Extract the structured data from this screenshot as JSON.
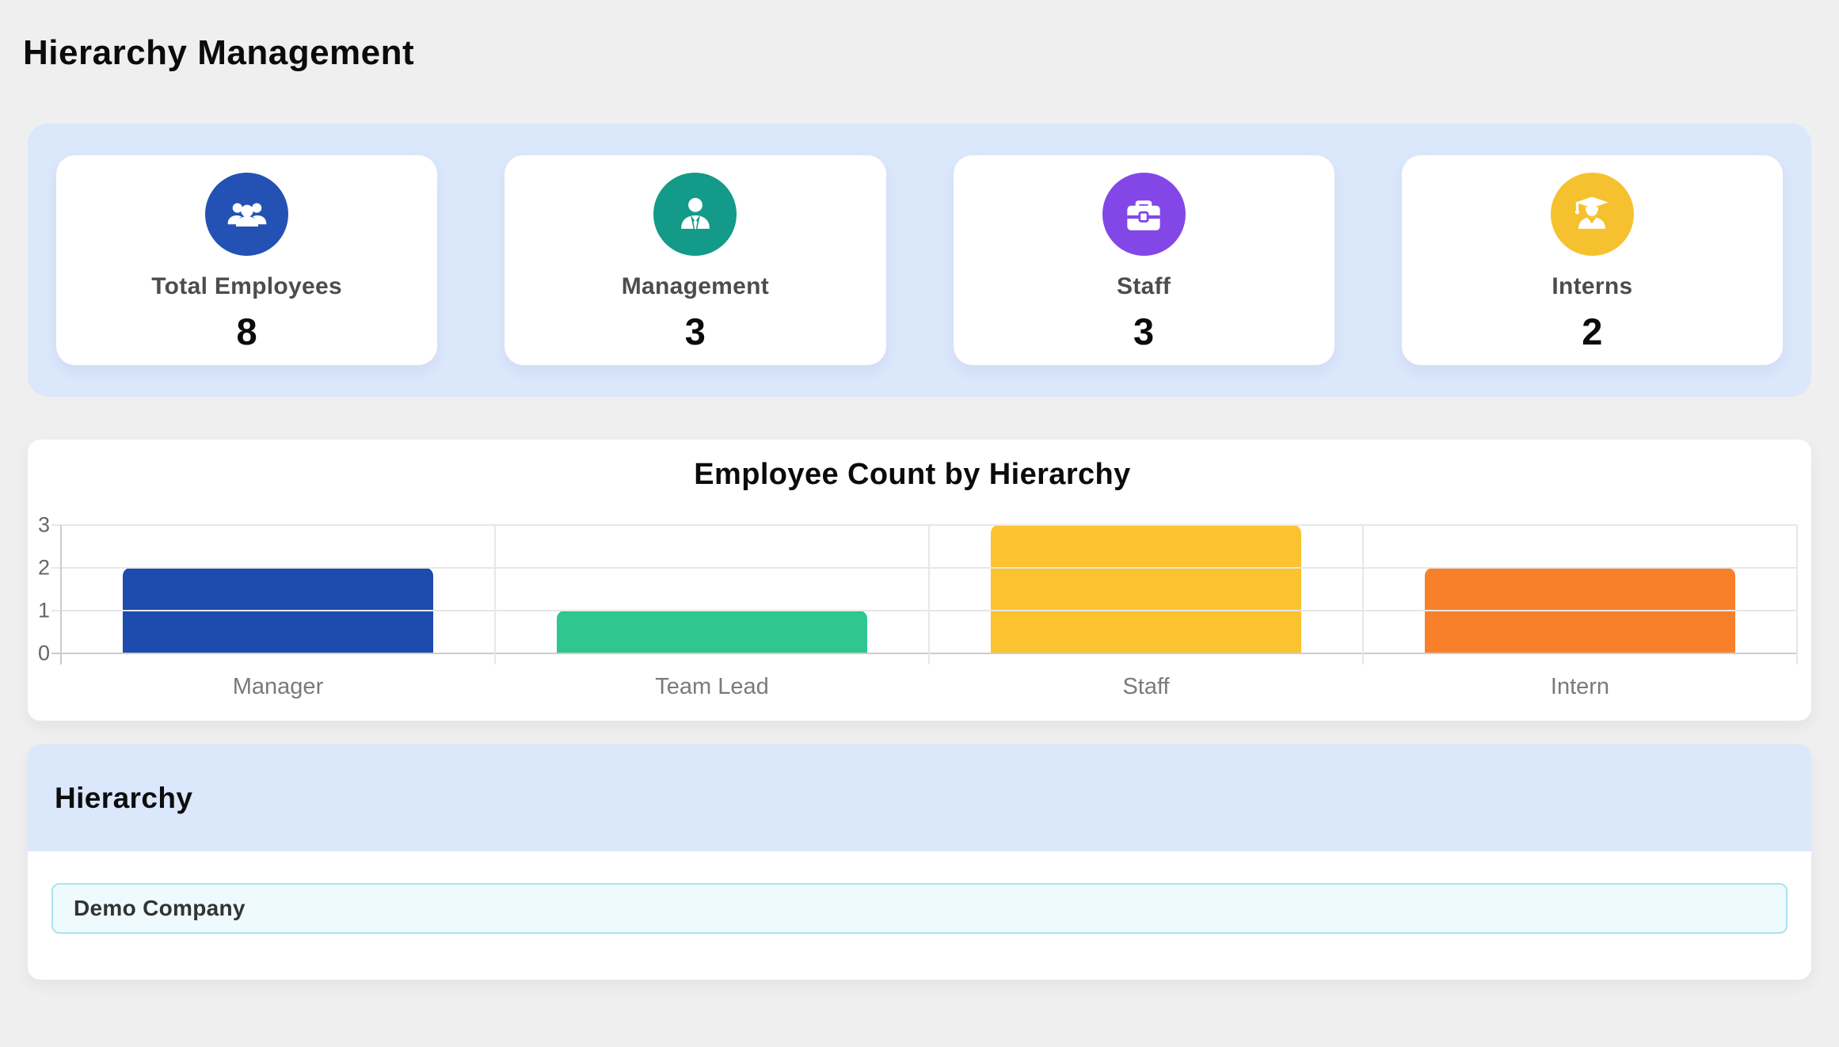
{
  "page": {
    "title": "Hierarchy Management",
    "background": "#efefef"
  },
  "stats": {
    "background": "#dbe7fb",
    "cards": [
      {
        "label": "Total Employees",
        "value": "8",
        "icon": "users-icon",
        "color": "#2352b4"
      },
      {
        "label": "Management",
        "value": "3",
        "icon": "user-tie-icon",
        "color": "#139a88"
      },
      {
        "label": "Staff",
        "value": "3",
        "icon": "briefcase-icon",
        "color": "#8347e8"
      },
      {
        "label": "Interns",
        "value": "2",
        "icon": "user-graduate-icon",
        "color": "#f6c12e"
      }
    ]
  },
  "chart_data": {
    "type": "bar",
    "title": "Employee Count by Hierarchy",
    "categories": [
      "Manager",
      "Team Lead",
      "Staff",
      "Intern"
    ],
    "values": [
      2,
      1,
      3,
      2
    ],
    "bar_colors": [
      "#1d4bae",
      "#2fc690",
      "#fcc330",
      "#f8802b"
    ],
    "ylim": [
      0,
      3
    ],
    "yticks": [
      0,
      1,
      2,
      3
    ],
    "grid": true,
    "legend": "none",
    "xlabel": "",
    "ylabel": ""
  },
  "hierarchy": {
    "heading": "Hierarchy",
    "background": "#dbe7fb",
    "items": [
      {
        "label": "Demo Company"
      }
    ]
  }
}
